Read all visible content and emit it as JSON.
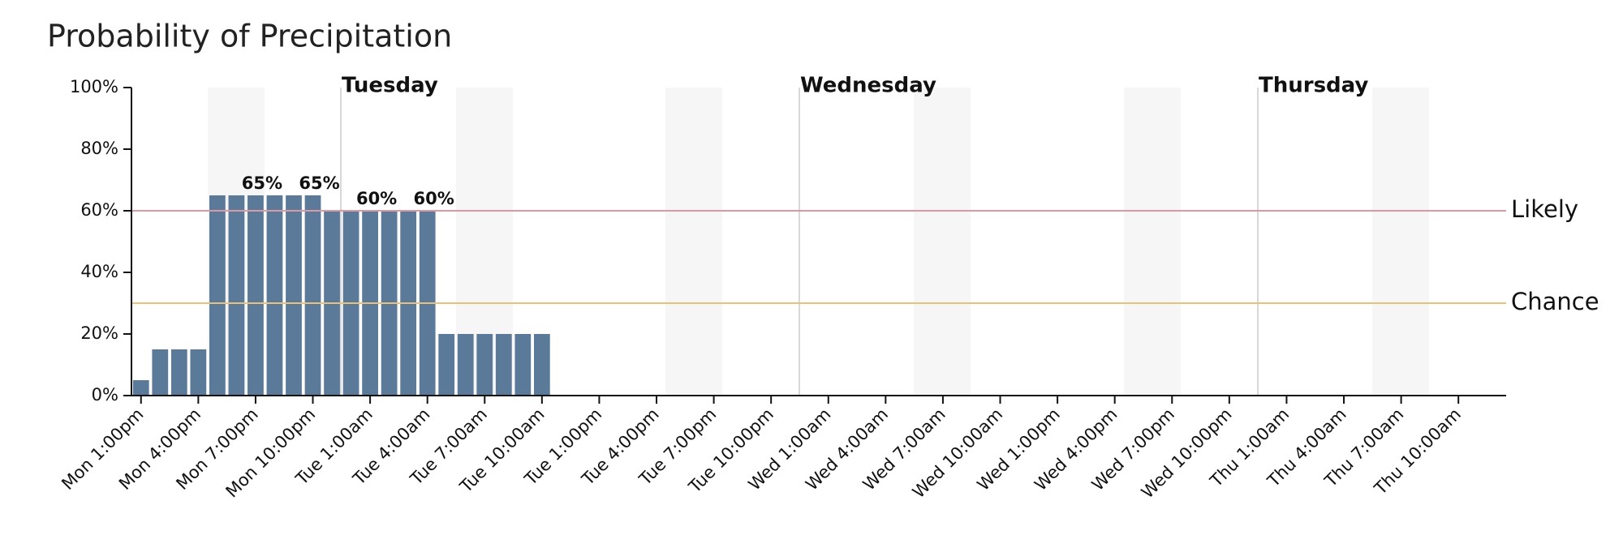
{
  "chart_data": {
    "type": "bar",
    "title": "Probability of Precipitation",
    "categories": [
      "Mon 1:00pm",
      null,
      null,
      "Mon 4:00pm",
      null,
      null,
      "Mon 7:00pm",
      null,
      null,
      "Mon 10:00pm",
      null,
      null,
      "Tue 1:00am",
      null,
      null,
      "Tue 4:00am",
      null,
      null,
      "Tue 7:00am",
      null,
      null,
      "Tue 10:00am",
      null,
      null,
      "Tue 1:00pm",
      null,
      null,
      "Tue 4:00pm",
      null,
      null,
      "Tue 7:00pm",
      null,
      null,
      "Tue 10:00pm",
      null,
      null,
      "Wed 1:00am",
      null,
      null,
      "Wed 4:00am",
      null,
      null,
      "Wed 7:00am",
      null,
      null,
      "Wed 10:00am",
      null,
      null,
      "Wed 1:00pm",
      null,
      null,
      "Wed 4:00pm",
      null,
      null,
      "Wed 7:00pm",
      null,
      null,
      "Wed 10:00pm",
      null,
      null,
      "Thu 1:00am",
      null,
      null,
      "Thu 4:00am",
      null,
      null,
      "Thu 7:00am",
      null,
      null,
      "Thu 10:00am",
      null,
      null
    ],
    "values": [
      5,
      15,
      15,
      15,
      65,
      65,
      65,
      65,
      65,
      65,
      60,
      60,
      60,
      60,
      60,
      60,
      20,
      20,
      20,
      20,
      20,
      20,
      0,
      0,
      0,
      0,
      0,
      0,
      0,
      0,
      0,
      0,
      0,
      0,
      0,
      0,
      0,
      0,
      0,
      0,
      0,
      0,
      0,
      0,
      0,
      0,
      0,
      0,
      0,
      0,
      0,
      0,
      0,
      0,
      0,
      0,
      0,
      0,
      0,
      0,
      0,
      0,
      0,
      0,
      0,
      0,
      0,
      0,
      0,
      0,
      0,
      0
    ],
    "value_labels": [
      null,
      null,
      null,
      null,
      null,
      null,
      "65%",
      null,
      null,
      "65%",
      null,
      null,
      "60%",
      null,
      null,
      "60%",
      null,
      null,
      null,
      null,
      null,
      null,
      null,
      null,
      null,
      null,
      null,
      null,
      null,
      null,
      null,
      null,
      null,
      null,
      null,
      null,
      null,
      null,
      null,
      null,
      null,
      null,
      null,
      null,
      null,
      null,
      null,
      null,
      null,
      null,
      null,
      null,
      null,
      null,
      null,
      null,
      null,
      null,
      null,
      null,
      null,
      null,
      null,
      null,
      null,
      null,
      null,
      null,
      null,
      null,
      null,
      null
    ],
    "color": "#5b7a9a",
    "ylim": [
      0,
      100
    ],
    "yticks": [
      {
        "value": 0,
        "label": "0%"
      },
      {
        "value": 20,
        "label": "20%"
      },
      {
        "value": 40,
        "label": "40%"
      },
      {
        "value": 60,
        "label": "60%"
      },
      {
        "value": 80,
        "label": "80%"
      },
      {
        "value": 100,
        "label": "100%"
      }
    ],
    "thresholds": [
      {
        "label": "Likely",
        "value": 60,
        "color": "#d99aa3",
        "text_color": "#3a0c14"
      },
      {
        "label": "Chance",
        "value": 30,
        "color": "#e6c27c",
        "text_color": "#2a1f00"
      }
    ],
    "days": [
      "Tuesday",
      "Wednesday",
      "Thursday"
    ]
  }
}
